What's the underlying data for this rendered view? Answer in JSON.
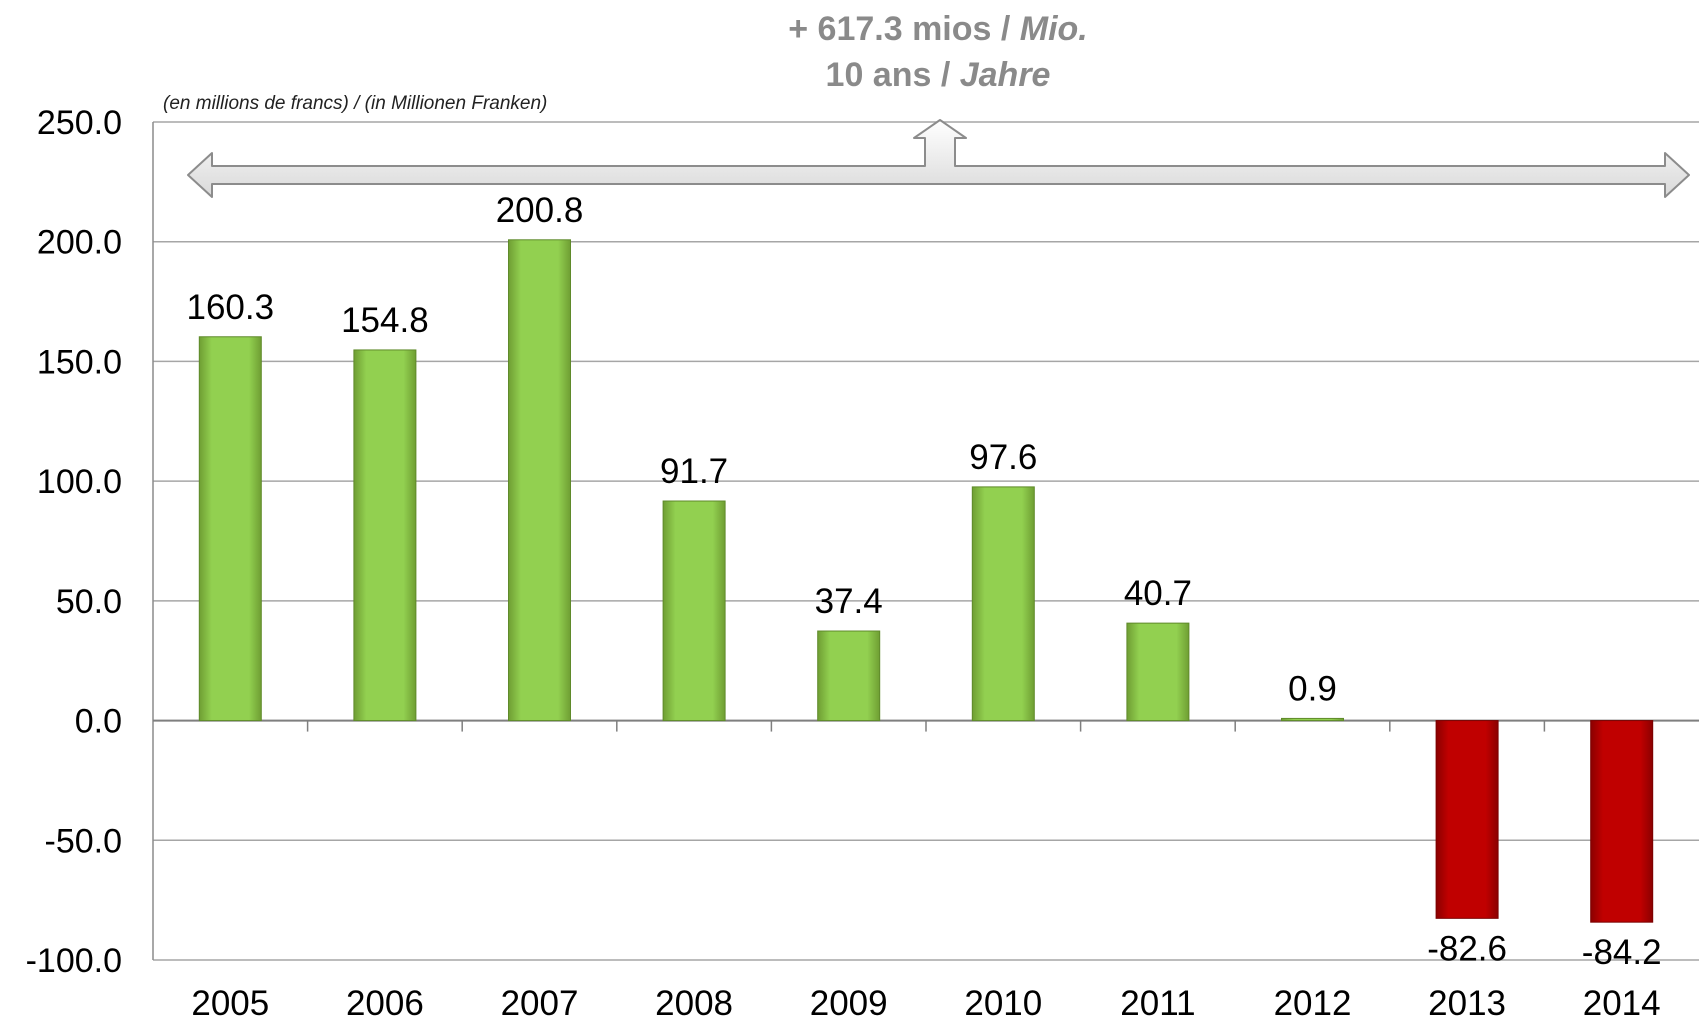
{
  "chart_data": {
    "type": "bar",
    "title": "",
    "xlabel": "",
    "ylabel": "",
    "unit_note": "(en millions de francs) / (in Millionen Franken)",
    "annotation": {
      "line1_prefix": "+ 617.3 mios / ",
      "line1_italic": "Mio.",
      "line2_prefix": "10 ans / ",
      "line2_italic": "Jahre"
    },
    "categories": [
      "2005",
      "2006",
      "2007",
      "2008",
      "2009",
      "2010",
      "2011",
      "2012",
      "2013",
      "2014"
    ],
    "values": [
      160.3,
      154.8,
      200.8,
      91.7,
      37.4,
      97.6,
      40.7,
      0.9,
      -82.6,
      -84.2
    ],
    "value_labels": [
      "160.3",
      "154.8",
      "200.8",
      "91.7",
      "37.4",
      "97.6",
      "40.7",
      "0.9",
      "-82.6",
      "-84.2"
    ],
    "ylim": [
      -100,
      250
    ],
    "yticks": [
      "-100.0",
      "-50.0",
      "0.0",
      "50.0",
      "100.0",
      "150.0",
      "200.0",
      "250.0"
    ],
    "grid": true,
    "legend": "none",
    "colors": {
      "positive": "#92d050",
      "negative": "#c00000",
      "grid": "#a6a6a6",
      "annotation": "#8a8a8a"
    }
  }
}
